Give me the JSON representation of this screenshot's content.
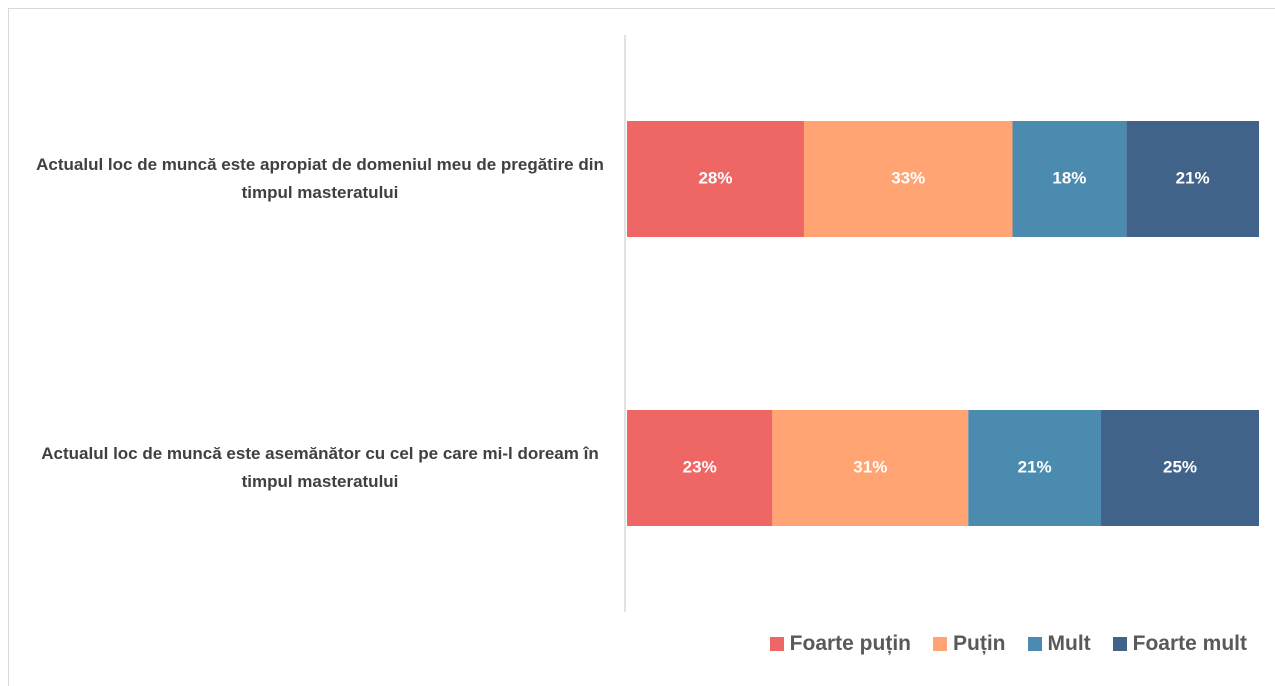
{
  "chart_data": {
    "type": "stacked_bar_horizontal",
    "categories": [
      "Actualul loc de muncă este apropiat de domeniul meu de pregătire din timpul masteratului",
      "Actualul loc de muncă este asemănător cu cel pe care mi-l doream în timpul masteratului"
    ],
    "series": [
      {
        "name": "Foarte puțin",
        "color": "#ee6764",
        "values": [
          28,
          23
        ],
        "value_labels": [
          "28%",
          "23%"
        ]
      },
      {
        "name": "Puțin",
        "color": "#ffa472",
        "values": [
          33,
          31
        ],
        "value_labels": [
          "33%",
          "31%"
        ]
      },
      {
        "name": "Mult",
        "color": "#4b8bb0",
        "values": [
          18,
          21
        ],
        "value_labels": [
          "18%",
          "21%"
        ]
      },
      {
        "name": "Foarte mult",
        "color": "#426389",
        "values": [
          21,
          25
        ],
        "value_labels": [
          "21%",
          "25%"
        ]
      }
    ],
    "xlim": [
      0,
      100
    ],
    "legend": "bottom-right"
  }
}
